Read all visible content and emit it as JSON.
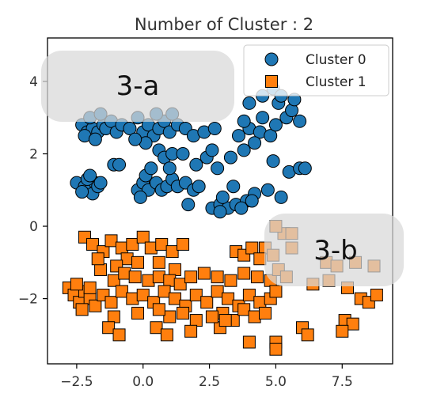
{
  "chart_data": {
    "type": "scatter",
    "title": "Number of Cluster : 2",
    "xlabel": "",
    "ylabel": "",
    "xlim": [
      -3.6,
      9.4
    ],
    "ylim": [
      -3.8,
      5.2
    ],
    "xticks": [
      -2.5,
      0.0,
      2.5,
      5.0,
      7.5
    ],
    "xtick_labels": [
      "−2.5",
      "0.0",
      "2.5",
      "5.0",
      "7.5"
    ],
    "yticks": [
      -2,
      0,
      2,
      4
    ],
    "ytick_labels": [
      "−2",
      "0",
      "2",
      "4"
    ],
    "grid": false,
    "legend": {
      "placement": "top-right"
    },
    "series": [
      {
        "name": "Cluster 0",
        "marker": "circle",
        "color": "#1f77b4",
        "points": [
          [
            -2.3,
            2.8
          ],
          [
            -2.1,
            2.6
          ],
          [
            -1.9,
            2.7
          ],
          [
            -2.0,
            3.0
          ],
          [
            -1.7,
            2.6
          ],
          [
            -1.5,
            2.8
          ],
          [
            -2.2,
            2.5
          ],
          [
            -1.8,
            2.4
          ],
          [
            -1.6,
            3.1
          ],
          [
            -1.4,
            2.7
          ],
          [
            -1.2,
            2.9
          ],
          [
            -1.0,
            2.6
          ],
          [
            -0.8,
            2.8
          ],
          [
            -0.5,
            2.7
          ],
          [
            -0.2,
            3.0
          ],
          [
            0.0,
            2.6
          ],
          [
            0.2,
            2.8
          ],
          [
            0.4,
            2.5
          ],
          [
            0.1,
            2.3
          ],
          [
            -0.3,
            2.4
          ],
          [
            0.6,
            2.7
          ],
          [
            0.8,
            2.9
          ],
          [
            1.0,
            2.6
          ],
          [
            1.3,
            2.8
          ],
          [
            1.6,
            2.7
          ],
          [
            1.9,
            2.5
          ],
          [
            2.3,
            2.6
          ],
          [
            2.7,
            2.7
          ],
          [
            0.5,
            3.1
          ],
          [
            1.1,
            3.1
          ],
          [
            3.6,
            2.5
          ],
          [
            4.0,
            2.7
          ],
          [
            4.4,
            2.6
          ],
          [
            4.8,
            2.5
          ],
          [
            3.8,
            2.9
          ],
          [
            4.5,
            3.0
          ],
          [
            5.0,
            2.8
          ],
          [
            5.4,
            3.0
          ],
          [
            5.9,
            2.9
          ],
          [
            4.2,
            2.3
          ],
          [
            5.1,
            3.4
          ],
          [
            5.6,
            3.2
          ],
          [
            4.9,
            3.8
          ],
          [
            5.2,
            3.6
          ],
          [
            5.7,
            3.5
          ],
          [
            4.0,
            3.4
          ],
          [
            4.5,
            3.6
          ],
          [
            0.6,
            2.1
          ],
          [
            0.8,
            1.9
          ],
          [
            1.1,
            2.0
          ],
          [
            -2.5,
            1.2
          ],
          [
            -2.2,
            1.1
          ],
          [
            -2.0,
            1.0
          ],
          [
            -1.8,
            1.2
          ],
          [
            -2.1,
            1.3
          ],
          [
            -1.9,
            0.9
          ],
          [
            -1.7,
            1.1
          ],
          [
            -2.3,
            0.95
          ],
          [
            -2.0,
            1.4
          ],
          [
            -1.6,
            1.2
          ],
          [
            -1.1,
            1.7
          ],
          [
            -0.9,
            1.7
          ],
          [
            -0.2,
            1.0
          ],
          [
            0.0,
            1.2
          ],
          [
            0.2,
            1.0
          ],
          [
            -0.1,
            0.8
          ],
          [
            0.1,
            1.4
          ],
          [
            0.5,
            1.2
          ],
          [
            0.7,
            1.0
          ],
          [
            0.9,
            1.1
          ],
          [
            1.1,
            1.3
          ],
          [
            1.3,
            1.1
          ],
          [
            1.6,
            1.2
          ],
          [
            1.9,
            1.0
          ],
          [
            2.1,
            1.1
          ],
          [
            1.7,
            0.6
          ],
          [
            0.3,
            1.6
          ],
          [
            1.0,
            1.6
          ],
          [
            2.6,
            0.5
          ],
          [
            2.9,
            0.6
          ],
          [
            3.2,
            0.5
          ],
          [
            3.5,
            0.6
          ],
          [
            3.9,
            0.7
          ],
          [
            4.2,
            0.9
          ],
          [
            3.0,
            0.8
          ],
          [
            3.4,
            1.1
          ],
          [
            3.7,
            0.5
          ],
          [
            2.9,
            0.4
          ],
          [
            4.1,
            0.7
          ],
          [
            4.7,
            1.0
          ],
          [
            5.2,
            0.8
          ],
          [
            4.9,
            1.8
          ],
          [
            5.5,
            1.5
          ],
          [
            5.9,
            1.6
          ],
          [
            6.1,
            1.6
          ],
          [
            2.0,
            1.7
          ],
          [
            2.4,
            1.9
          ],
          [
            2.8,
            1.6
          ],
          [
            3.3,
            1.9
          ],
          [
            3.8,
            2.1
          ],
          [
            2.6,
            2.1
          ],
          [
            1.5,
            2.0
          ]
        ]
      },
      {
        "name": "Cluster 1",
        "marker": "square",
        "color": "#ff7f0e",
        "points": [
          [
            -2.2,
            -0.3
          ],
          [
            -1.9,
            -0.5
          ],
          [
            -1.5,
            -0.7
          ],
          [
            -1.2,
            -0.4
          ],
          [
            -0.8,
            -0.6
          ],
          [
            -0.4,
            -0.5
          ],
          [
            0.0,
            -0.3
          ],
          [
            0.3,
            -0.6
          ],
          [
            0.7,
            -0.5
          ],
          [
            1.1,
            -0.7
          ],
          [
            1.5,
            -0.5
          ],
          [
            -0.6,
            -0.9
          ],
          [
            -1.0,
            -1.1
          ],
          [
            -0.2,
            -1.0
          ],
          [
            0.6,
            -1.0
          ],
          [
            1.2,
            -1.2
          ],
          [
            -1.6,
            -1.2
          ],
          [
            -1.1,
            -1.5
          ],
          [
            -0.7,
            -1.3
          ],
          [
            -0.3,
            -1.4
          ],
          [
            0.2,
            -1.5
          ],
          [
            0.6,
            -1.4
          ],
          [
            1.0,
            -1.5
          ],
          [
            1.4,
            -1.6
          ],
          [
            1.8,
            -1.4
          ],
          [
            2.3,
            -1.3
          ],
          [
            2.8,
            -1.4
          ],
          [
            3.3,
            -1.5
          ],
          [
            3.8,
            -1.3
          ],
          [
            4.3,
            -1.4
          ],
          [
            4.8,
            -1.5
          ],
          [
            5.1,
            -1.2
          ],
          [
            5.4,
            -1.4
          ],
          [
            3.5,
            -0.7
          ],
          [
            3.8,
            -0.8
          ],
          [
            4.1,
            -0.6
          ],
          [
            4.6,
            -0.6
          ],
          [
            4.9,
            -0.8
          ],
          [
            4.4,
            -0.9
          ],
          [
            5.3,
            -0.2
          ],
          [
            5.6,
            -0.6
          ],
          [
            -2.8,
            -1.7
          ],
          [
            -2.6,
            -1.9
          ],
          [
            -2.4,
            -2.1
          ],
          [
            -2.2,
            -1.8
          ],
          [
            -2.0,
            -2.0
          ],
          [
            -1.8,
            -2.2
          ],
          [
            -2.5,
            -1.6
          ],
          [
            -2.3,
            -2.3
          ],
          [
            -2.0,
            -1.7
          ],
          [
            -1.5,
            -1.9
          ],
          [
            -1.2,
            -2.1
          ],
          [
            -0.8,
            -1.8
          ],
          [
            -0.4,
            -2.0
          ],
          [
            0.0,
            -1.9
          ],
          [
            0.4,
            -2.1
          ],
          [
            0.8,
            -1.8
          ],
          [
            1.2,
            -2.0
          ],
          [
            1.6,
            -2.2
          ],
          [
            2.0,
            -1.9
          ],
          [
            2.4,
            -2.1
          ],
          [
            2.8,
            -1.8
          ],
          [
            3.2,
            -2.0
          ],
          [
            3.6,
            -2.2
          ],
          [
            4.0,
            -1.9
          ],
          [
            4.4,
            -2.1
          ],
          [
            4.8,
            -2.0
          ],
          [
            5.0,
            -1.8
          ],
          [
            3.0,
            -2.4
          ],
          [
            3.4,
            -2.6
          ],
          [
            3.8,
            -2.3
          ],
          [
            4.2,
            -2.5
          ],
          [
            4.6,
            -2.4
          ],
          [
            2.0,
            -2.6
          ],
          [
            1.5,
            -2.4
          ],
          [
            1.0,
            -2.5
          ],
          [
            0.6,
            -2.3
          ],
          [
            -0.2,
            -2.4
          ],
          [
            -1.1,
            -2.5
          ],
          [
            -1.3,
            -2.8
          ],
          [
            -0.9,
            -3.0
          ],
          [
            0.5,
            -2.8
          ],
          [
            0.9,
            -3.0
          ],
          [
            1.8,
            -2.9
          ],
          [
            2.9,
            -2.8
          ],
          [
            3.1,
            -2.6
          ],
          [
            4.0,
            -3.2
          ],
          [
            5.0,
            -3.2
          ],
          [
            5.0,
            -3.4
          ],
          [
            6.0,
            -2.8
          ],
          [
            6.2,
            -3.0
          ],
          [
            7.6,
            -2.6
          ],
          [
            7.9,
            -2.7
          ],
          [
            7.5,
            -2.9
          ],
          [
            8.2,
            -2.0
          ],
          [
            8.5,
            -2.1
          ],
          [
            8.8,
            -1.9
          ],
          [
            7.7,
            -1.7
          ],
          [
            6.4,
            -1.6
          ],
          [
            7.0,
            -1.5
          ],
          [
            6.9,
            -1.0
          ],
          [
            7.3,
            -1.1
          ],
          [
            8.0,
            -1.0
          ],
          [
            8.7,
            -1.1
          ],
          [
            5.0,
            0.0
          ],
          [
            5.6,
            -0.2
          ],
          [
            2.6,
            -2.5
          ],
          [
            -1.7,
            -0.9
          ]
        ]
      }
    ],
    "annotations": [
      {
        "text": "3-a"
      },
      {
        "text": "3-b"
      }
    ]
  }
}
